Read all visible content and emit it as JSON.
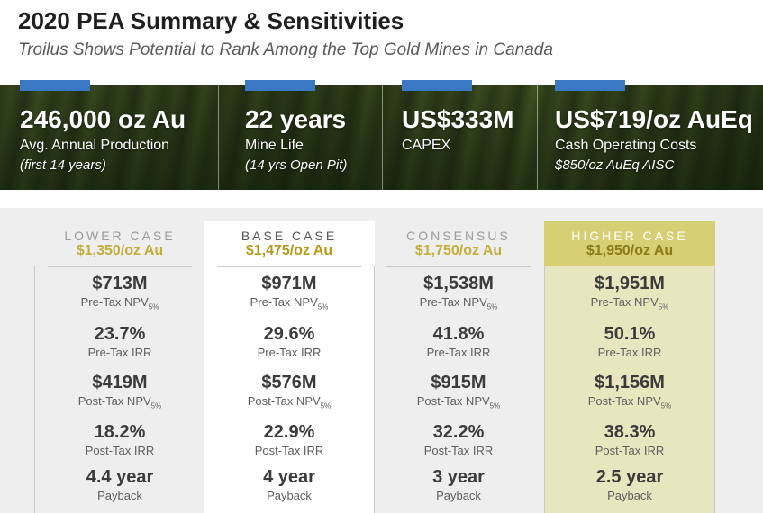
{
  "title": "2020 PEA Summary & Sensitivities",
  "subtitle": "Troilus Shows Potential to Rank Among the Top Gold Mines in Canada",
  "colors": {
    "accent_bar": "#3a78c4",
    "higher_case_bg": "#e8e6bf",
    "gold_text": "#c2ae3a"
  },
  "stats": [
    {
      "value": "246,000 oz Au",
      "line1": "Avg. Annual Production",
      "line2": "(first 14 years)"
    },
    {
      "value": "22 years",
      "line1": "Mine Life",
      "line2": "(14 yrs Open Pit)"
    },
    {
      "value": "US$333M",
      "line1": "CAPEX",
      "line2": ""
    },
    {
      "value": "US$719/oz AuEq",
      "line1": "Cash Operating Costs",
      "line2": "$850/oz AuEq AISC"
    }
  ],
  "metric_labels": {
    "pre_npv": "Pre-Tax NPV",
    "pre_irr": "Pre-Tax IRR",
    "post_npv": "Post-Tax NPV",
    "post_irr": "Post-Tax IRR",
    "payback": "Payback",
    "npv_sub": "5%"
  },
  "cases": [
    {
      "name": "LOWER CASE",
      "price": "$1,350/oz Au",
      "pre_npv": "$713M",
      "pre_irr": "23.7%",
      "post_npv": "$419M",
      "post_irr": "18.2%",
      "payback": "4.4 year"
    },
    {
      "name": "BASE CASE",
      "price": "$1,475/oz Au",
      "pre_npv": "$971M",
      "pre_irr": "29.6%",
      "post_npv": "$576M",
      "post_irr": "22.9%",
      "payback": "4 year"
    },
    {
      "name": "CONSENSUS",
      "price": "$1,750/oz Au",
      "pre_npv": "$1,538M",
      "pre_irr": "41.8%",
      "post_npv": "$915M",
      "post_irr": "32.2%",
      "payback": "3 year"
    },
    {
      "name": "HIGHER CASE",
      "price": "$1,950/oz Au",
      "pre_npv": "$1,951M",
      "pre_irr": "50.1%",
      "post_npv": "$1,156M",
      "post_irr": "38.3%",
      "payback": "2.5 year"
    }
  ]
}
